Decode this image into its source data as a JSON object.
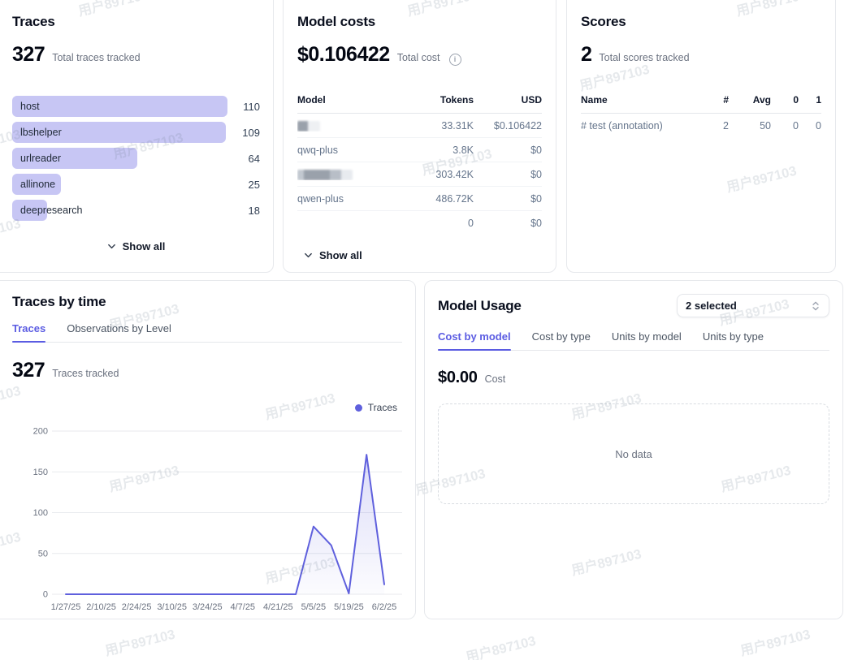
{
  "accent": "#5b5ce2",
  "watermark": {
    "text": "用户897103"
  },
  "traces_card": {
    "title": "Traces",
    "metric_value": "327",
    "metric_label": "Total traces tracked",
    "show_all_label": "Show all",
    "max_value": 110,
    "bars": [
      {
        "label": "host",
        "value": 110
      },
      {
        "label": "lbshelper",
        "value": 109
      },
      {
        "label": "urlreader",
        "value": 64
      },
      {
        "label": "allinone",
        "value": 25
      },
      {
        "label": "deepresearch",
        "value": 18
      }
    ]
  },
  "model_costs_card": {
    "title": "Model costs",
    "metric_value": "$0.106422",
    "metric_label": "Total cost",
    "show_all_label": "Show all",
    "columns": [
      "Model",
      "Tokens",
      "USD"
    ],
    "rows": [
      {
        "model": "",
        "redacted": true,
        "tokens": "33.31K",
        "usd": "$0.106422"
      },
      {
        "model": "qwq-plus",
        "redacted": false,
        "tokens": "3.8K",
        "usd": "$0"
      },
      {
        "model": "",
        "redacted": true,
        "tokens": "303.42K",
        "usd": "$0"
      },
      {
        "model": "qwen-plus",
        "redacted": false,
        "tokens": "486.72K",
        "usd": "$0"
      },
      {
        "model": "",
        "redacted": false,
        "tokens": "0",
        "usd": "$0"
      }
    ]
  },
  "scores_card": {
    "title": "Scores",
    "metric_value": "2",
    "metric_label": "Total scores tracked",
    "columns": [
      "Name",
      "#",
      "Avg",
      "0",
      "1"
    ],
    "rows": [
      {
        "name": "# test (annotation)",
        "count": "2",
        "avg": "50",
        "zero": "0",
        "one": "0"
      }
    ]
  },
  "traces_by_time_card": {
    "title": "Traces by time",
    "tabs": [
      {
        "label": "Traces",
        "active": true
      },
      {
        "label": "Observations by Level",
        "active": false
      }
    ],
    "metric_value": "327",
    "metric_label": "Traces tracked",
    "legend": "Traces"
  },
  "chart_data": {
    "type": "area",
    "title": "Traces by time",
    "x": [
      "1/27/25",
      "2/3/25",
      "2/10/25",
      "2/17/25",
      "2/24/25",
      "3/3/25",
      "3/10/25",
      "3/17/25",
      "3/24/25",
      "3/31/25",
      "4/7/25",
      "4/14/25",
      "4/21/25",
      "4/28/25",
      "5/5/25",
      "5/12/25",
      "5/19/25",
      "5/26/25",
      "6/2/25"
    ],
    "x_tick_labels": [
      "1/27/25",
      "2/10/25",
      "2/24/25",
      "3/10/25",
      "3/24/25",
      "4/7/25",
      "4/21/25",
      "5/5/25",
      "5/19/25",
      "6/2/25"
    ],
    "series": [
      {
        "name": "Traces",
        "values": [
          0,
          0,
          0,
          0,
          0,
          0,
          0,
          0,
          0,
          0,
          0,
          0,
          0,
          0,
          83,
          60,
          1,
          171,
          12
        ]
      }
    ],
    "y_ticks": [
      0,
      50,
      100,
      150,
      200
    ],
    "ylim": [
      0,
      200
    ],
    "grid": "horizontal",
    "legend_position": "top-right",
    "line_color": "#5f60dd"
  },
  "model_usage_card": {
    "title": "Model Usage",
    "selector": {
      "value": "2 selected"
    },
    "tabs": [
      {
        "label": "Cost by model",
        "active": true
      },
      {
        "label": "Cost by type",
        "active": false
      },
      {
        "label": "Units by model",
        "active": false
      },
      {
        "label": "Units by type",
        "active": false
      }
    ],
    "metric_value": "$0.00",
    "metric_label": "Cost",
    "empty_state": "No data"
  }
}
